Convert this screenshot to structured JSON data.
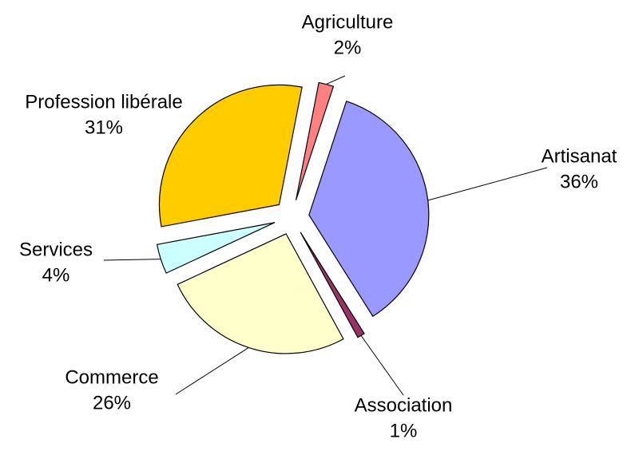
{
  "chart_data": {
    "type": "pie",
    "categories": [
      "Agriculture",
      "Artisanat",
      "Association",
      "Commerce",
      "Services",
      "Profession libérale"
    ],
    "values": [
      2,
      36,
      1,
      26,
      4,
      31
    ],
    "value_labels": [
      "2%",
      "36%",
      "1%",
      "26%",
      "4%",
      "31%"
    ],
    "colors": [
      "#ff8080",
      "#9999ff",
      "#993366",
      "#ffffcc",
      "#ccffff",
      "#ffcc00"
    ]
  }
}
